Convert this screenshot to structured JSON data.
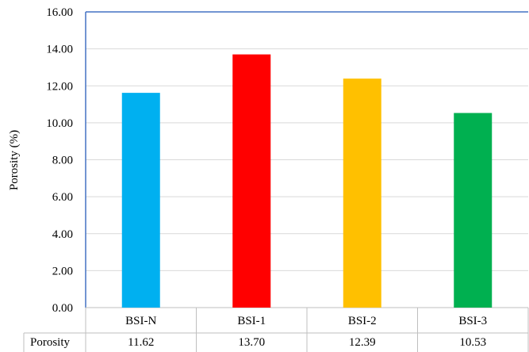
{
  "chart_data": {
    "type": "bar",
    "title": "",
    "xlabel": "",
    "ylabel": "Porosity (%)",
    "ylim": [
      0,
      16
    ],
    "yticks": [
      "0.00",
      "2.00",
      "4.00",
      "6.00",
      "8.00",
      "10.00",
      "12.00",
      "14.00",
      "16.00"
    ],
    "grid": true,
    "categories": [
      "BSI-N",
      "BSI-1",
      "BSI-2",
      "BSI-3"
    ],
    "series": [
      {
        "name": "Porosity",
        "values": [
          11.62,
          13.7,
          12.39,
          10.53
        ],
        "value_labels": [
          "11.62",
          "13.70",
          "12.39",
          "10.53"
        ],
        "colors": [
          "#00b0f0",
          "#ff0000",
          "#ffc000",
          "#00b050"
        ]
      }
    ],
    "data_table": true
  }
}
